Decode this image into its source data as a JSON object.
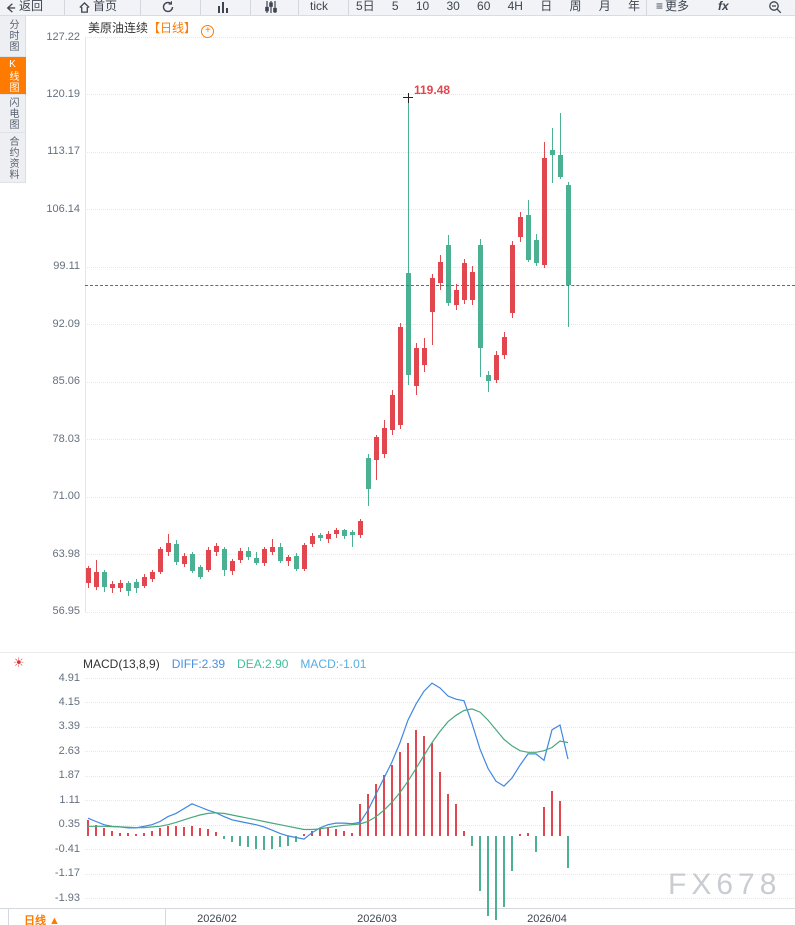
{
  "toolbar": {
    "back": "返回",
    "home": "首页",
    "tick": "tick",
    "periods": [
      "5日",
      "5",
      "10",
      "30",
      "60",
      "4H",
      "日",
      "周",
      "月",
      "年"
    ],
    "more": "更多",
    "fx": "fx"
  },
  "sidebar": {
    "items": [
      {
        "label": "分时图",
        "active": false
      },
      {
        "label": "K线图",
        "active": true
      },
      {
        "label": "闪电图",
        "active": false
      },
      {
        "label": "合约资料",
        "active": false
      }
    ]
  },
  "chart": {
    "title": "美原油连续",
    "period_tag": "【日线】",
    "high_annotation": "119.48",
    "last_price": 96.9
  },
  "macd_header": {
    "name": "MACD(13,8,9)",
    "diff": "DIFF:2.39",
    "dea": "DEA:2.90",
    "macd": "MACD:-1.01"
  },
  "bottom_period": "日线 ▲",
  "watermark": "FX678",
  "colors": {
    "up": "#e2464f",
    "down": "#4cb092",
    "diff_line": "#3f87e0",
    "dea_line": "#4aa87d",
    "last_price_line": "#1a79e8",
    "accent_orange": "#ff7a00",
    "annotation_red": "#e2464f"
  },
  "chart_data": {
    "type": "candlestick",
    "instrument": "美原油连续",
    "interval": "日线",
    "price_axis_ticks": [
      127.22,
      120.19,
      113.17,
      106.14,
      99.11,
      92.09,
      85.06,
      78.03,
      71.0,
      63.98,
      56.95
    ],
    "x_month_labels": [
      "2026/02",
      "2026/03",
      "2026/04"
    ],
    "highest_annotation": 119.48,
    "last_close": 96.9,
    "up_means": "red (CN convention: red = rising, green = falling)",
    "candles_ohlc": [
      [
        60.5,
        62.5,
        59.9,
        62.3
      ],
      [
        60.0,
        63.3,
        59.6,
        61.8
      ],
      [
        61.8,
        62.1,
        59.4,
        60.0
      ],
      [
        59.8,
        60.7,
        59.2,
        60.3
      ],
      [
        59.9,
        60.8,
        59.4,
        60.4
      ],
      [
        60.4,
        60.7,
        58.9,
        59.5
      ],
      [
        60.6,
        60.9,
        59.2,
        59.8
      ],
      [
        60.1,
        61.5,
        59.8,
        61.2
      ],
      [
        61.0,
        62.1,
        60.6,
        61.8
      ],
      [
        61.8,
        64.9,
        61.5,
        64.6
      ],
      [
        64.2,
        66.4,
        63.8,
        65.4
      ],
      [
        65.2,
        65.7,
        62.7,
        63.0
      ],
      [
        62.8,
        64.1,
        62.4,
        63.8
      ],
      [
        64.0,
        64.3,
        61.7,
        61.9
      ],
      [
        62.4,
        62.7,
        60.9,
        61.2
      ],
      [
        62.1,
        64.8,
        61.8,
        64.5
      ],
      [
        64.2,
        65.3,
        63.7,
        65.0
      ],
      [
        64.6,
        64.9,
        61.3,
        62.0
      ],
      [
        61.9,
        63.4,
        61.4,
        63.1
      ],
      [
        63.3,
        64.7,
        62.9,
        64.4
      ],
      [
        64.4,
        64.8,
        63.3,
        63.6
      ],
      [
        63.5,
        64.2,
        62.6,
        62.9
      ],
      [
        62.9,
        64.9,
        62.5,
        64.6
      ],
      [
        64.3,
        65.8,
        63.9,
        64.9
      ],
      [
        64.9,
        65.3,
        62.9,
        63.2
      ],
      [
        63.1,
        63.9,
        62.5,
        63.6
      ],
      [
        63.7,
        64.1,
        61.9,
        62.2
      ],
      [
        62.2,
        65.4,
        61.9,
        65.1
      ],
      [
        65.2,
        66.6,
        64.8,
        66.2
      ],
      [
        66.3,
        66.6,
        65.6,
        65.9
      ],
      [
        65.8,
        66.8,
        65.4,
        66.5
      ],
      [
        66.5,
        67.2,
        65.9,
        66.9
      ],
      [
        66.9,
        67.1,
        65.9,
        66.2
      ],
      [
        66.7,
        66.9,
        64.8,
        66.3
      ],
      [
        66.3,
        68.3,
        65.9,
        68.1
      ],
      [
        75.8,
        76.2,
        69.9,
        71.9
      ],
      [
        75.5,
        78.6,
        73.0,
        78.3
      ],
      [
        76.2,
        80.4,
        75.8,
        79.4
      ],
      [
        79.2,
        84.0,
        78.6,
        83.5
      ],
      [
        79.8,
        92.3,
        79.3,
        91.8
      ],
      [
        98.4,
        119.48,
        84.7,
        85.9
      ],
      [
        84.5,
        89.8,
        83.5,
        89.2
      ],
      [
        87.1,
        90.4,
        86.3,
        89.2
      ],
      [
        93.6,
        98.2,
        89.5,
        97.8
      ],
      [
        97.2,
        100.6,
        96.3,
        99.7
      ],
      [
        101.8,
        103.0,
        94.3,
        94.7
      ],
      [
        94.5,
        97.0,
        93.8,
        96.3
      ],
      [
        95.1,
        100.1,
        94.6,
        99.6
      ],
      [
        95.1,
        99.2,
        94.4,
        98.5
      ],
      [
        101.8,
        102.5,
        85.7,
        89.2
      ],
      [
        85.9,
        86.4,
        83.8,
        85.1
      ],
      [
        85.3,
        88.8,
        84.9,
        88.3
      ],
      [
        88.3,
        91.2,
        87.8,
        90.5
      ],
      [
        93.5,
        102.3,
        92.9,
        101.8
      ],
      [
        102.8,
        105.8,
        102.2,
        105.2
      ],
      [
        105.5,
        107.3,
        99.7,
        100.0
      ],
      [
        102.4,
        103.1,
        99.2,
        99.6
      ],
      [
        99.4,
        114.4,
        99.0,
        112.4
      ],
      [
        113.4,
        116.1,
        109.4,
        112.8
      ],
      [
        112.8,
        117.9,
        109.8,
        110.1
      ],
      [
        109.1,
        109.5,
        91.7,
        96.9
      ]
    ],
    "macd": {
      "params": "13,8,9",
      "diff_last": 2.39,
      "dea_last": 2.9,
      "macd_last": -1.01,
      "axis_ticks": [
        4.91,
        4.15,
        3.39,
        2.63,
        1.87,
        1.11,
        0.35,
        -0.41,
        -1.17,
        -1.93
      ],
      "diff": [
        0.55,
        0.45,
        0.35,
        0.3,
        0.28,
        0.25,
        0.25,
        0.3,
        0.35,
        0.45,
        0.6,
        0.7,
        0.85,
        1.0,
        0.9,
        0.8,
        0.72,
        0.6,
        0.5,
        0.45,
        0.4,
        0.35,
        0.28,
        0.18,
        0.08,
        0.0,
        -0.05,
        -0.1,
        0.1,
        0.25,
        0.35,
        0.4,
        0.4,
        0.38,
        0.42,
        0.8,
        1.3,
        1.8,
        2.3,
        2.9,
        3.6,
        4.1,
        4.5,
        4.75,
        4.6,
        4.35,
        4.25,
        4.2,
        3.5,
        2.7,
        2.1,
        1.7,
        1.55,
        1.8,
        2.2,
        2.55,
        2.55,
        2.35,
        3.3,
        3.45,
        2.39
      ],
      "dea": [
        0.3,
        0.3,
        0.3,
        0.29,
        0.28,
        0.27,
        0.26,
        0.26,
        0.28,
        0.3,
        0.35,
        0.42,
        0.5,
        0.58,
        0.65,
        0.7,
        0.72,
        0.7,
        0.65,
        0.6,
        0.55,
        0.5,
        0.45,
        0.4,
        0.35,
        0.3,
        0.25,
        0.2,
        0.2,
        0.22,
        0.26,
        0.3,
        0.33,
        0.35,
        0.37,
        0.45,
        0.6,
        0.8,
        1.05,
        1.35,
        1.7,
        2.1,
        2.5,
        2.9,
        3.25,
        3.55,
        3.75,
        3.9,
        3.95,
        3.85,
        3.6,
        3.3,
        3.0,
        2.8,
        2.65,
        2.6,
        2.6,
        2.65,
        2.75,
        2.95,
        2.9
      ],
      "hist": [
        0.5,
        0.35,
        0.25,
        0.15,
        0.1,
        0.08,
        0.05,
        0.1,
        0.15,
        0.25,
        0.3,
        0.3,
        0.28,
        0.3,
        0.25,
        0.2,
        0.12,
        -0.1,
        -0.2,
        -0.3,
        -0.35,
        -0.4,
        -0.45,
        -0.4,
        -0.35,
        -0.3,
        -0.2,
        0.05,
        0.15,
        0.2,
        0.25,
        0.2,
        0.15,
        0.1,
        1.0,
        1.3,
        1.6,
        1.9,
        2.2,
        2.6,
        2.9,
        3.3,
        3.1,
        2.9,
        2.0,
        1.3,
        1.0,
        0.15,
        -0.3,
        -1.7,
        -2.5,
        -2.6,
        -2.2,
        -1.1,
        0.05,
        0.1,
        -0.5,
        0.9,
        1.4,
        1.1,
        -1.01
      ]
    }
  }
}
